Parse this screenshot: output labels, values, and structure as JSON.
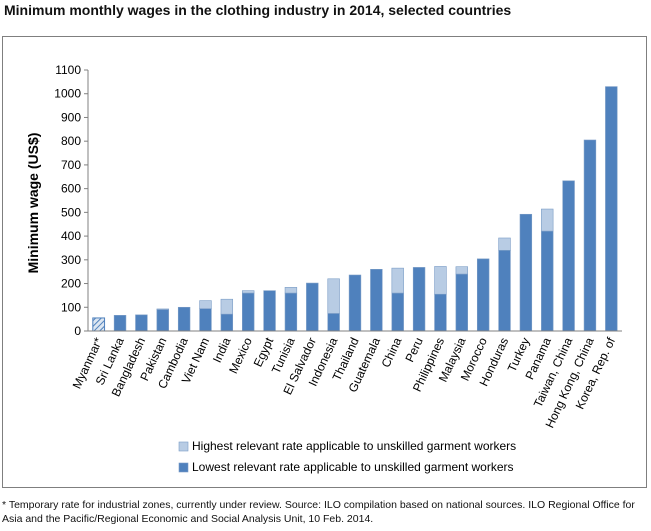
{
  "title": "Minimum monthly wages in the clothing industry in 2014, selected countries",
  "footnote": "* Temporary rate for industrial zones, currently under review. Source: ILO compilation based on national sources. ILO Regional Office for Asia and the Pacific/Regional Economic and Social Analysis Unit, 10 Feb. 2014.",
  "colors": {
    "lowest": "#4f81bd",
    "highest": "#b8cce4",
    "bar_edge": "#7a9cc6",
    "axis": "#808080"
  },
  "chart_data": {
    "type": "bar",
    "stacked": true,
    "title": "Minimum monthly wages in the clothing industry in 2014, selected countries",
    "xlabel": "",
    "ylabel": "Minimum wage (US$)",
    "ylim": [
      0,
      1100
    ],
    "yticks": [
      0,
      100,
      200,
      300,
      400,
      500,
      600,
      700,
      800,
      900,
      1000,
      1100
    ],
    "grid": false,
    "legend_position": "bottom",
    "categories": [
      "Myanmar*",
      "Sri Lanka",
      "Bangladesh",
      "Pakistan",
      "Cambodia",
      "Viet Nam",
      "India",
      "Mexico",
      "Egypt",
      "Tunisia",
      "El Salvador",
      "Indonesia",
      "Thailand",
      "Guatemala",
      "China",
      "Peru",
      "Philippines",
      "Malaysia",
      "Morocco",
      "Honduras",
      "Turkey",
      "Panama",
      "Taiwan, China",
      "Hong Kong, China",
      "Korea, Rep. of"
    ],
    "series": [
      {
        "name": "Lowest relevant rate applicable to unskilled garment workers",
        "color": "#4f81bd",
        "values": [
          0,
          66,
          68,
          90,
          100,
          94,
          71,
          160,
          170,
          160,
          202,
          74,
          236,
          260,
          160,
          268,
          155,
          240,
          304,
          340,
          492,
          421,
          633,
          805,
          1030
        ]
      },
      {
        "name": "Highest relevant rate applicable to unskilled garment workers",
        "color": "#b8cce4",
        "values": [
          0,
          0,
          0,
          3,
          0,
          34,
          63,
          10,
          0,
          24,
          0,
          146,
          0,
          0,
          105,
          0,
          117,
          31,
          0,
          52,
          0,
          93,
          0,
          0,
          0
        ]
      }
    ],
    "hatched_bars": [
      {
        "category": "Myanmar*",
        "value": 55,
        "pattern": "diagonal-hatch"
      }
    ]
  }
}
